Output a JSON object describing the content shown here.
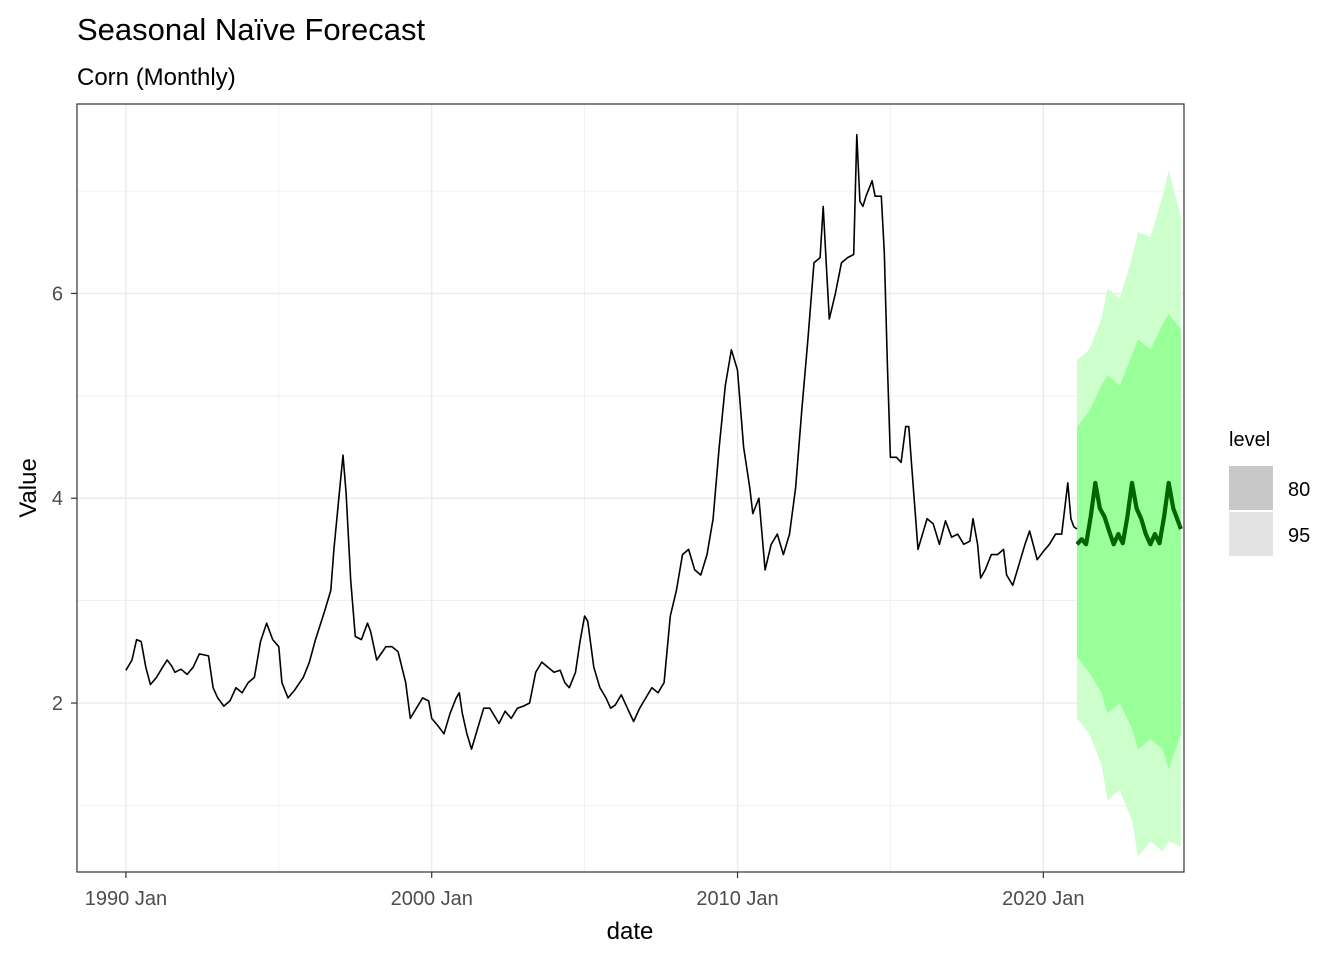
{
  "chart_data": {
    "type": "line",
    "title": "Seasonal Naïve Forecast",
    "subtitle": "Corn (Monthly)",
    "xlabel": "date",
    "ylabel": "Value",
    "xlim": [
      1988.4,
      2024.6
    ],
    "ylim": [
      0.35,
      7.85
    ],
    "x_ticks": [
      {
        "value": 1990,
        "label": "1990 Jan"
      },
      {
        "value": 2000,
        "label": "2000 Jan"
      },
      {
        "value": 2010,
        "label": "2010 Jan"
      },
      {
        "value": 2020,
        "label": "2020 Jan"
      }
    ],
    "y_ticks": [
      {
        "value": 2,
        "label": "2"
      },
      {
        "value": 4,
        "label": "4"
      },
      {
        "value": 6,
        "label": "6"
      }
    ],
    "grid": true,
    "legend": {
      "title": "level",
      "position": "right",
      "entries": [
        {
          "label": "80",
          "color": "#c8c8c8"
        },
        {
          "label": "95",
          "color": "#e3e3e3"
        }
      ]
    },
    "colors": {
      "history": "#000000",
      "forecast": "#006400",
      "band80": "#99ff99",
      "band95": "#ccffcc"
    },
    "history": [
      [
        1990.0,
        2.32
      ],
      [
        1990.2,
        2.42
      ],
      [
        1990.35,
        2.62
      ],
      [
        1990.5,
        2.6
      ],
      [
        1990.65,
        2.35
      ],
      [
        1990.8,
        2.18
      ],
      [
        1991.0,
        2.25
      ],
      [
        1991.2,
        2.35
      ],
      [
        1991.35,
        2.42
      ],
      [
        1991.5,
        2.36
      ],
      [
        1991.6,
        2.3
      ],
      [
        1991.8,
        2.33
      ],
      [
        1992.0,
        2.28
      ],
      [
        1992.2,
        2.35
      ],
      [
        1992.4,
        2.48
      ],
      [
        1992.7,
        2.46
      ],
      [
        1992.85,
        2.15
      ],
      [
        1993.0,
        2.05
      ],
      [
        1993.2,
        1.97
      ],
      [
        1993.4,
        2.02
      ],
      [
        1993.6,
        2.15
      ],
      [
        1993.8,
        2.1
      ],
      [
        1994.0,
        2.2
      ],
      [
        1994.2,
        2.25
      ],
      [
        1994.4,
        2.6
      ],
      [
        1994.6,
        2.78
      ],
      [
        1994.8,
        2.62
      ],
      [
        1995.0,
        2.55
      ],
      [
        1995.1,
        2.2
      ],
      [
        1995.3,
        2.05
      ],
      [
        1995.5,
        2.12
      ],
      [
        1995.8,
        2.25
      ],
      [
        1996.0,
        2.4
      ],
      [
        1996.2,
        2.62
      ],
      [
        1996.5,
        2.9
      ],
      [
        1996.7,
        3.1
      ],
      [
        1996.8,
        3.5
      ],
      [
        1997.0,
        4.12
      ],
      [
        1997.1,
        4.42
      ],
      [
        1997.2,
        4.05
      ],
      [
        1997.35,
        3.2
      ],
      [
        1997.5,
        2.65
      ],
      [
        1997.7,
        2.62
      ],
      [
        1997.9,
        2.78
      ],
      [
        1998.0,
        2.7
      ],
      [
        1998.2,
        2.42
      ],
      [
        1998.5,
        2.55
      ],
      [
        1998.7,
        2.55
      ],
      [
        1998.9,
        2.5
      ],
      [
        1999.0,
        2.38
      ],
      [
        1999.15,
        2.2
      ],
      [
        1999.3,
        1.85
      ],
      [
        1999.5,
        1.95
      ],
      [
        1999.7,
        2.05
      ],
      [
        1999.9,
        2.02
      ],
      [
        2000.0,
        1.85
      ],
      [
        2000.2,
        1.78
      ],
      [
        2000.4,
        1.7
      ],
      [
        2000.6,
        1.9
      ],
      [
        2000.8,
        2.05
      ],
      [
        2000.9,
        2.1
      ],
      [
        2001.0,
        1.9
      ],
      [
        2001.15,
        1.7
      ],
      [
        2001.3,
        1.55
      ],
      [
        2001.5,
        1.75
      ],
      [
        2001.7,
        1.95
      ],
      [
        2001.9,
        1.95
      ],
      [
        2002.0,
        1.9
      ],
      [
        2002.2,
        1.8
      ],
      [
        2002.4,
        1.92
      ],
      [
        2002.6,
        1.85
      ],
      [
        2002.8,
        1.95
      ],
      [
        2003.0,
        1.97
      ],
      [
        2003.2,
        2.0
      ],
      [
        2003.4,
        2.3
      ],
      [
        2003.6,
        2.4
      ],
      [
        2003.8,
        2.35
      ],
      [
        2004.0,
        2.3
      ],
      [
        2004.2,
        2.32
      ],
      [
        2004.35,
        2.2
      ],
      [
        2004.5,
        2.15
      ],
      [
        2004.7,
        2.3
      ],
      [
        2004.85,
        2.6
      ],
      [
        2005.0,
        2.85
      ],
      [
        2005.1,
        2.8
      ],
      [
        2005.3,
        2.35
      ],
      [
        2005.5,
        2.15
      ],
      [
        2005.7,
        2.05
      ],
      [
        2005.85,
        1.95
      ],
      [
        2006.0,
        1.98
      ],
      [
        2006.2,
        2.08
      ],
      [
        2006.4,
        1.95
      ],
      [
        2006.6,
        1.82
      ],
      [
        2006.8,
        1.95
      ],
      [
        2007.0,
        2.05
      ],
      [
        2007.2,
        2.15
      ],
      [
        2007.4,
        2.1
      ],
      [
        2007.6,
        2.2
      ],
      [
        2007.8,
        2.85
      ],
      [
        2008.0,
        3.1
      ],
      [
        2008.2,
        3.45
      ],
      [
        2008.4,
        3.5
      ],
      [
        2008.6,
        3.3
      ],
      [
        2008.8,
        3.25
      ],
      [
        2009.0,
        3.45
      ],
      [
        2009.2,
        3.8
      ],
      [
        2009.4,
        4.5
      ],
      [
        2009.6,
        5.1
      ],
      [
        2009.8,
        5.45
      ],
      [
        2010.0,
        5.25
      ],
      [
        2010.2,
        4.5
      ],
      [
        2010.4,
        4.1
      ],
      [
        2010.5,
        3.85
      ],
      [
        2010.7,
        4.0
      ],
      [
        2010.9,
        3.3
      ],
      [
        2011.1,
        3.55
      ],
      [
        2011.3,
        3.65
      ],
      [
        2011.5,
        3.45
      ],
      [
        2011.7,
        3.65
      ],
      [
        2011.9,
        4.1
      ],
      [
        2012.1,
        4.85
      ],
      [
        2012.3,
        5.55
      ],
      [
        2012.5,
        6.3
      ],
      [
        2012.7,
        6.35
      ],
      [
        2012.8,
        6.85
      ],
      [
        2012.9,
        6.3
      ],
      [
        2013.0,
        5.75
      ],
      [
        2013.2,
        6.0
      ],
      [
        2013.4,
        6.3
      ],
      [
        2013.6,
        6.35
      ],
      [
        2013.8,
        6.38
      ],
      [
        2013.9,
        7.55
      ],
      [
        2014.0,
        6.9
      ],
      [
        2014.1,
        6.85
      ],
      [
        2014.2,
        6.95
      ],
      [
        2014.4,
        7.1
      ],
      [
        2014.5,
        6.95
      ],
      [
        2014.7,
        6.95
      ],
      [
        2014.8,
        6.4
      ],
      [
        2014.9,
        5.3
      ],
      [
        2015.0,
        4.4
      ],
      [
        2015.2,
        4.4
      ],
      [
        2015.35,
        4.35
      ],
      [
        2015.5,
        4.7
      ],
      [
        2015.6,
        4.7
      ],
      [
        2015.7,
        4.3
      ],
      [
        2015.9,
        3.5
      ],
      [
        2016.0,
        3.6
      ],
      [
        2016.2,
        3.8
      ],
      [
        2016.4,
        3.75
      ],
      [
        2016.6,
        3.55
      ],
      [
        2016.8,
        3.78
      ],
      [
        2017.0,
        3.62
      ],
      [
        2017.2,
        3.65
      ],
      [
        2017.4,
        3.55
      ],
      [
        2017.6,
        3.58
      ],
      [
        2017.7,
        3.8
      ],
      [
        2017.85,
        3.55
      ],
      [
        2017.95,
        3.22
      ],
      [
        2018.1,
        3.3
      ],
      [
        2018.3,
        3.45
      ],
      [
        2018.5,
        3.45
      ],
      [
        2018.7,
        3.5
      ],
      [
        2018.8,
        3.25
      ],
      [
        2019.0,
        3.15
      ],
      [
        2019.2,
        3.35
      ],
      [
        2019.4,
        3.55
      ],
      [
        2019.55,
        3.68
      ],
      [
        2019.8,
        3.4
      ],
      [
        2020.0,
        3.48
      ],
      [
        2020.2,
        3.55
      ],
      [
        2020.4,
        3.65
      ],
      [
        2020.6,
        3.65
      ],
      [
        2020.8,
        4.15
      ],
      [
        2020.9,
        3.8
      ],
      [
        2021.0,
        3.72
      ],
      [
        2021.1,
        3.7
      ]
    ],
    "forecast": [
      [
        2021.1,
        3.55
      ],
      [
        2021.25,
        3.6
      ],
      [
        2021.4,
        3.55
      ],
      [
        2021.55,
        3.82
      ],
      [
        2021.7,
        4.15
      ],
      [
        2021.85,
        3.9
      ],
      [
        2022.0,
        3.82
      ],
      [
        2022.15,
        3.68
      ],
      [
        2022.3,
        3.55
      ],
      [
        2022.45,
        3.65
      ],
      [
        2022.6,
        3.56
      ],
      [
        2022.75,
        3.82
      ],
      [
        2022.9,
        4.15
      ],
      [
        2023.05,
        3.9
      ],
      [
        2023.2,
        3.8
      ],
      [
        2023.35,
        3.65
      ],
      [
        2023.5,
        3.55
      ],
      [
        2023.65,
        3.65
      ],
      [
        2023.8,
        3.56
      ],
      [
        2023.95,
        3.82
      ],
      [
        2024.1,
        4.15
      ],
      [
        2024.25,
        3.9
      ],
      [
        2024.4,
        3.78
      ],
      [
        2024.5,
        3.7
      ]
    ],
    "band80": {
      "x": [
        2021.1,
        2021.5,
        2021.9,
        2022.1,
        2022.5,
        2022.9,
        2023.1,
        2023.5,
        2023.9,
        2024.1,
        2024.5
      ],
      "lower": [
        2.45,
        2.3,
        2.1,
        1.9,
        2.0,
        1.75,
        1.55,
        1.65,
        1.55,
        1.35,
        1.7
      ],
      "upper": [
        4.7,
        4.85,
        5.1,
        5.2,
        5.1,
        5.4,
        5.55,
        5.45,
        5.7,
        5.8,
        5.65
      ]
    },
    "band95": {
      "x": [
        2021.1,
        2021.5,
        2021.9,
        2022.1,
        2022.5,
        2022.9,
        2023.1,
        2023.5,
        2023.9,
        2024.1,
        2024.5
      ],
      "lower": [
        1.85,
        1.7,
        1.4,
        1.05,
        1.15,
        0.85,
        0.5,
        0.65,
        0.55,
        0.65,
        0.6
      ],
      "upper": [
        5.35,
        5.45,
        5.75,
        6.05,
        5.95,
        6.35,
        6.6,
        6.55,
        6.95,
        7.2,
        6.75
      ]
    }
  }
}
